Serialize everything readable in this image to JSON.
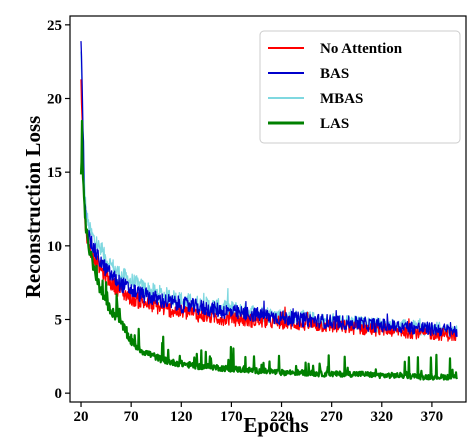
{
  "chart_data": {
    "type": "line",
    "title": "",
    "xlabel": "Epochs",
    "ylabel": "Reconstruction Loss",
    "xlim": [
      9,
      404
    ],
    "ylim": [
      -0.6,
      25.6
    ],
    "xticks": [
      20,
      70,
      120,
      170,
      220,
      270,
      320,
      370
    ],
    "yticks": [
      0,
      5,
      10,
      15,
      20,
      25
    ],
    "grid": false,
    "legend_position": "top-right",
    "series": [
      {
        "name": "No Attention",
        "color": "#ff0000",
        "x": [
          20,
          21,
          22,
          23,
          24,
          25,
          27,
          29,
          31,
          34,
          37,
          40,
          45,
          50,
          55,
          60,
          70,
          80,
          90,
          100,
          120,
          140,
          160,
          180,
          200,
          220,
          240,
          260,
          280,
          300,
          320,
          340,
          360,
          380,
          395
        ],
        "y": [
          21.5,
          19.0,
          16.0,
          13.5,
          12.0,
          11.0,
          10.2,
          9.8,
          9.5,
          9.1,
          8.7,
          8.4,
          7.9,
          7.5,
          7.2,
          6.9,
          6.5,
          6.2,
          6.0,
          5.8,
          5.5,
          5.3,
          5.1,
          5.0,
          4.9,
          4.8,
          4.7,
          4.6,
          4.5,
          4.4,
          4.3,
          4.2,
          4.1,
          4.0,
          3.9
        ]
      },
      {
        "name": "BAS",
        "color": "#0000cc",
        "x": [
          20,
          21,
          22,
          23,
          24,
          25,
          27,
          29,
          31,
          34,
          37,
          40,
          45,
          50,
          55,
          60,
          70,
          80,
          90,
          100,
          120,
          140,
          160,
          180,
          200,
          220,
          240,
          260,
          280,
          300,
          320,
          340,
          360,
          380,
          395
        ],
        "y": [
          24.2,
          21.0,
          17.5,
          14.5,
          12.8,
          11.6,
          10.8,
          10.4,
          10.0,
          9.6,
          9.2,
          8.9,
          8.4,
          8.0,
          7.7,
          7.4,
          7.0,
          6.7,
          6.5,
          6.3,
          6.0,
          5.8,
          5.6,
          5.4,
          5.3,
          5.1,
          5.0,
          4.9,
          4.8,
          4.7,
          4.6,
          4.5,
          4.4,
          4.3,
          4.2
        ]
      },
      {
        "name": "MBAS",
        "color": "#7fd8e0",
        "x": [
          20,
          21,
          22,
          23,
          24,
          25,
          27,
          29,
          31,
          34,
          37,
          40,
          45,
          50,
          55,
          60,
          70,
          80,
          90,
          100,
          120,
          140,
          160,
          180,
          200,
          220,
          240,
          260,
          280,
          300,
          320,
          340,
          360,
          380,
          395
        ],
        "y": [
          23.0,
          20.5,
          17.5,
          15.0,
          13.4,
          12.3,
          11.5,
          11.0,
          10.7,
          10.3,
          10.0,
          9.6,
          9.1,
          8.7,
          8.3,
          8.0,
          7.6,
          7.2,
          6.9,
          6.7,
          6.3,
          6.0,
          5.8,
          5.6,
          5.4,
          5.2,
          5.1,
          4.9,
          4.8,
          4.7,
          4.6,
          4.5,
          4.4,
          4.3,
          4.2
        ]
      },
      {
        "name": "LAS",
        "color": "#008000",
        "x": [
          20,
          21,
          22,
          23,
          24,
          25,
          27,
          29,
          31,
          34,
          37,
          40,
          45,
          50,
          55,
          60,
          65,
          70,
          80,
          90,
          100,
          110,
          120,
          130,
          140,
          150,
          160,
          180,
          200,
          220,
          240,
          260,
          280,
          300,
          320,
          340,
          360,
          380,
          395
        ],
        "y": [
          14.5,
          17.0,
          14.8,
          13.0,
          12.0,
          11.2,
          10.3,
          9.5,
          8.9,
          8.1,
          7.4,
          6.9,
          6.2,
          5.6,
          5.2,
          4.8,
          4.1,
          3.5,
          2.9,
          2.6,
          2.3,
          2.1,
          2.0,
          1.9,
          1.8,
          1.8,
          1.7,
          1.6,
          1.5,
          1.4,
          1.4,
          1.3,
          1.3,
          1.3,
          1.2,
          1.2,
          1.1,
          1.1,
          1.1
        ]
      }
    ]
  }
}
